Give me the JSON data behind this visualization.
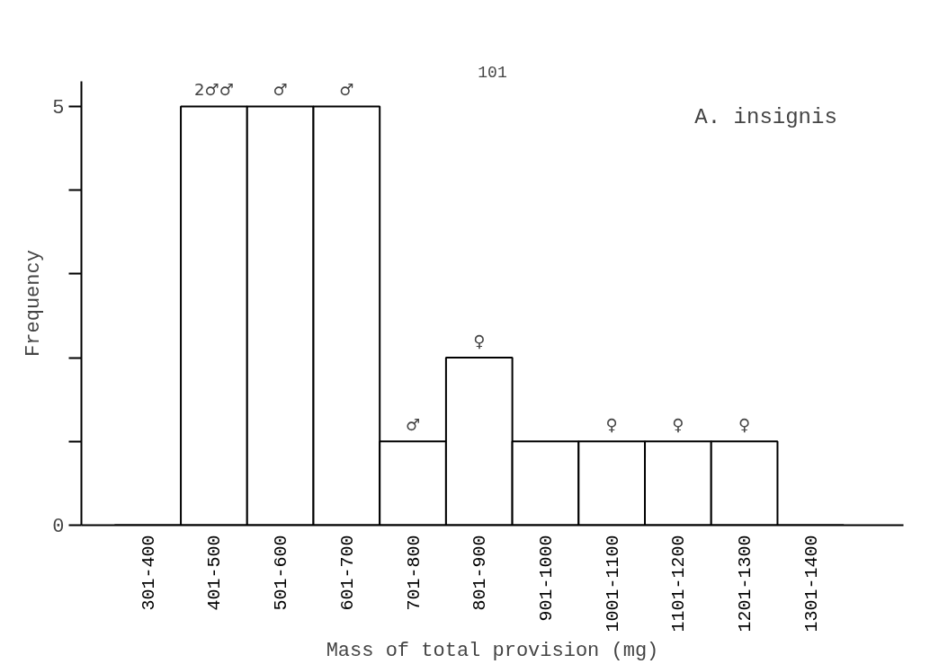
{
  "chart_data": {
    "type": "bar",
    "title": "A. insignis",
    "xlabel": "Mass of total provision (mg)",
    "ylabel": "Frequency",
    "categories": [
      "301-400",
      "401-500",
      "501-600",
      "601-700",
      "701-800",
      "801-900",
      "901-1000",
      "1001-1100",
      "1101-1200",
      "1201-1300",
      "1301-1400"
    ],
    "values": [
      0,
      5,
      5,
      5,
      1,
      2,
      1,
      1,
      1,
      1,
      0
    ],
    "color": "#ffffff",
    "ylim": [
      0,
      5.3
    ],
    "yticks": [
      0,
      {
        "value": 1,
        "label": null
      },
      {
        "value": 2,
        "label": null
      },
      {
        "value": 3,
        "label": null
      },
      {
        "value": 4,
        "label": null
      },
      5
    ],
    "grid": false,
    "annotations": [
      "101",
      {
        "text": "2♂♂",
        "x": "401-500",
        "y": 5
      },
      {
        "text": "♂",
        "x": "501-600",
        "y": 5
      },
      {
        "text": "♂",
        "x": "601-700",
        "y": 5
      },
      {
        "text": "♂",
        "x": "701-800",
        "y": 1
      },
      {
        "text": "♀",
        "x": "801-900",
        "y": 2
      },
      {
        "text": "♀",
        "x": "1001-1100",
        "y": 1
      },
      {
        "text": "♀",
        "x": "1101-1200",
        "y": 1
      },
      {
        "text": "♀",
        "x": "1201-1300",
        "y": 1
      }
    ]
  }
}
